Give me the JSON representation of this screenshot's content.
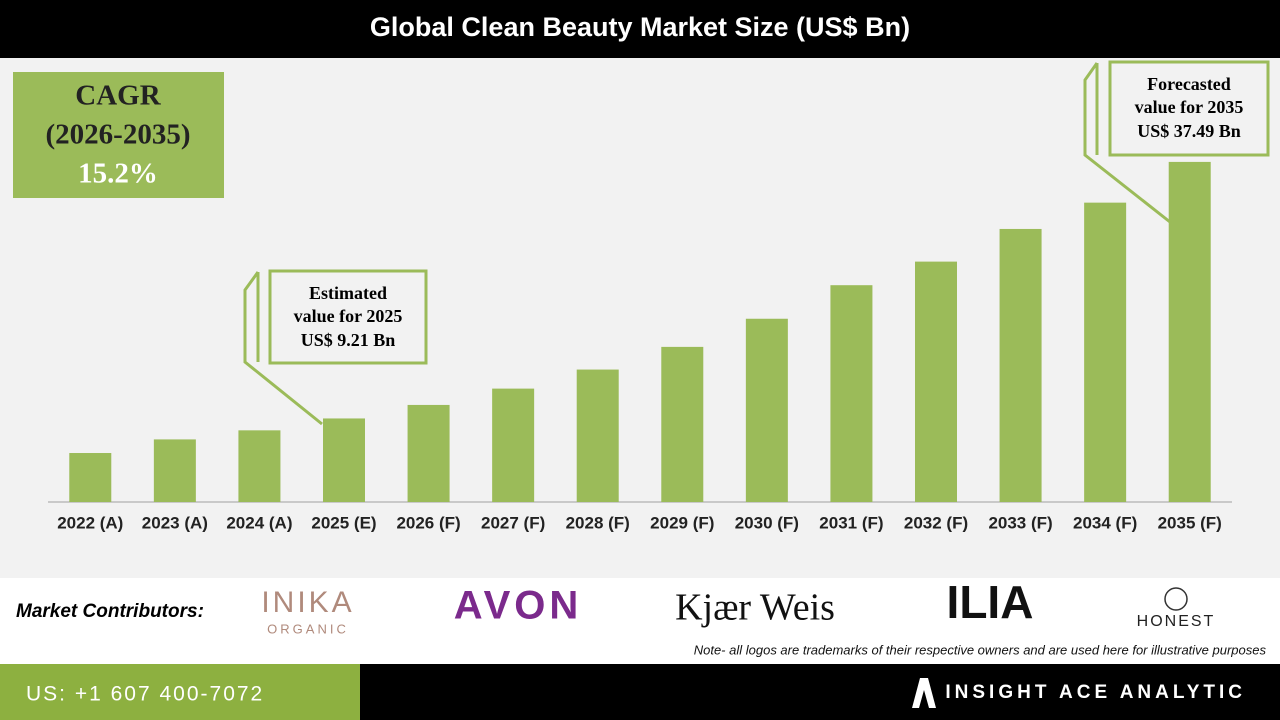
{
  "chart_data": {
    "type": "bar",
    "title": "Global Clean Beauty Market Size (US$ Bn)",
    "categories": [
      "2022 (A)",
      "2023 (A)",
      "2024 (A)",
      "2025 (E)",
      "2026 (F)",
      "2027 (F)",
      "2028 (F)",
      "2029 (F)",
      "2030 (F)",
      "2031 (F)",
      "2032 (F)",
      "2033 (F)",
      "2034 (F)",
      "2035 (F)"
    ],
    "values": [
      5.4,
      6.9,
      7.9,
      9.21,
      10.7,
      12.5,
      14.6,
      17.1,
      20.2,
      23.9,
      26.5,
      30.1,
      33.0,
      37.49
    ],
    "color": "#9bbb59",
    "ylim": [
      0,
      42
    ],
    "annotations": [
      {
        "lines": [
          "Estimated",
          "value for 2025",
          "US$ 9.21 Bn"
        ]
      },
      {
        "lines": [
          "Forecasted",
          "value for 2035",
          "US$ 37.49 Bn"
        ]
      }
    ]
  },
  "cagr": {
    "lines": [
      "CAGR",
      "(2026-2035)",
      "15.2%"
    ]
  },
  "contributors": {
    "label": "Market Contributors:",
    "logos": [
      "INIKA",
      "ORGANIC",
      "AVON",
      "Kjær Weis",
      "ILIA",
      "HONEST"
    ],
    "note": "Note- all logos are trademarks of their respective owners and are used here for illustrative purposes"
  },
  "footer": {
    "phone": "US: +1 607 400-7072",
    "company": "INSIGHT ACE ANALYTIC"
  }
}
